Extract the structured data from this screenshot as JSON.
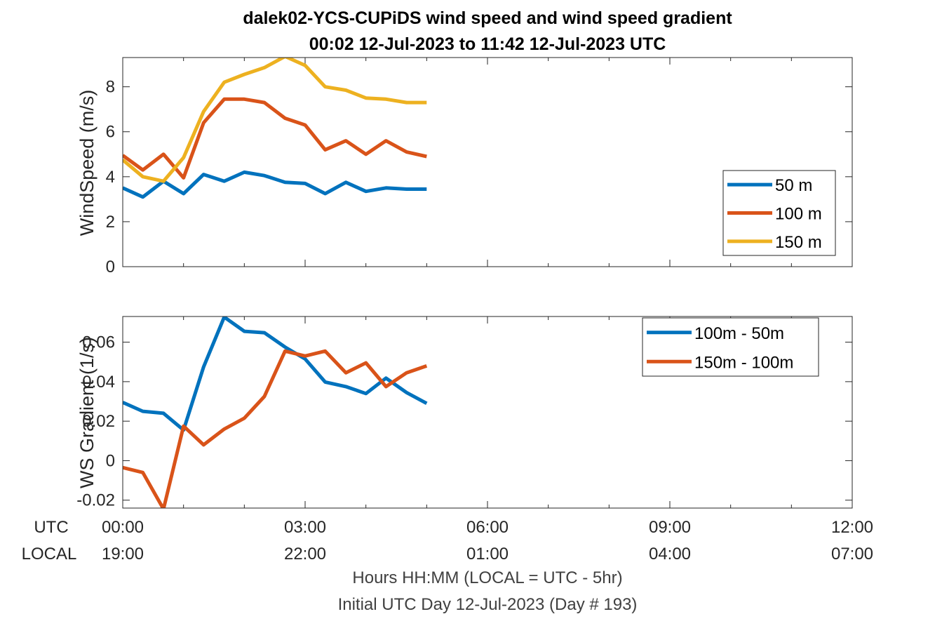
{
  "title_line1": "dalek02-YCS-CUPiDS  wind speed and wind speed gradient",
  "title_line2": "00:02 12-Jul-2023 to 11:42 12-Jul-2023  UTC",
  "utc_row_label": "UTC",
  "local_row_label": "LOCAL",
  "xlabel_line1": "Hours HH:MM  (LOCAL = UTC - 5hr)",
  "xlabel_line2": "Initial UTC Day 12-Jul-2023 (Day # 193)",
  "x_ticks": [
    {
      "hours": 0,
      "utc": "00:00",
      "local": "19:00"
    },
    {
      "hours": 3,
      "utc": "03:00",
      "local": "22:00"
    },
    {
      "hours": 6,
      "utc": "06:00",
      "local": "01:00"
    },
    {
      "hours": 9,
      "utc": "09:00",
      "local": "04:00"
    },
    {
      "hours": 12,
      "utc": "12:00",
      "local": "07:00"
    }
  ],
  "colors": {
    "blue": "#0072BD",
    "orange": "#D95319",
    "yellow": "#EDB120"
  },
  "chart_data": [
    {
      "type": "line",
      "ylabel": "WindSpeed (m/s)",
      "xlim": [
        0,
        12
      ],
      "ylim": [
        0,
        9.3
      ],
      "yticks": [
        0,
        2,
        4,
        6,
        8
      ],
      "ytick_labels": [
        "0",
        "2",
        "4",
        "6",
        "8"
      ],
      "legend_position": "right",
      "x": [
        0.0,
        0.33,
        0.67,
        1.0,
        1.33,
        1.67,
        2.0,
        2.33,
        2.67,
        3.0,
        3.33,
        3.67,
        4.0,
        4.33,
        4.67,
        5.0
      ],
      "series": [
        {
          "name": "50 m",
          "color": "#0072BD",
          "values": [
            3.5,
            3.1,
            3.8,
            3.25,
            4.1,
            3.8,
            4.2,
            4.05,
            3.75,
            3.7,
            3.25,
            3.75,
            3.35,
            3.5,
            3.45,
            3.45
          ]
        },
        {
          "name": "100 m",
          "color": "#D95319",
          "values": [
            4.95,
            4.3,
            5.0,
            3.95,
            6.4,
            7.45,
            7.45,
            7.3,
            6.6,
            6.3,
            5.2,
            5.6,
            5.0,
            5.6,
            5.1,
            4.9
          ]
        },
        {
          "name": "150 m",
          "color": "#EDB120",
          "values": [
            4.75,
            4.0,
            3.8,
            4.85,
            6.9,
            8.2,
            8.55,
            8.85,
            9.35,
            8.95,
            8.0,
            7.85,
            7.5,
            7.45,
            7.3,
            7.3
          ]
        }
      ]
    },
    {
      "type": "line",
      "ylabel": "WS Gradient (1/s)",
      "xlim": [
        0,
        12
      ],
      "ylim": [
        -0.024,
        0.073
      ],
      "yticks": [
        -0.02,
        0,
        0.02,
        0.04,
        0.06
      ],
      "ytick_labels": [
        "-0.02",
        "0",
        "0.02",
        "0.04",
        "0.06"
      ],
      "legend_position": "top-right",
      "x": [
        0.0,
        0.33,
        0.67,
        1.0,
        1.33,
        1.67,
        2.0,
        2.33,
        2.67,
        3.0,
        3.33,
        3.67,
        4.0,
        4.33,
        4.67,
        5.0
      ],
      "series": [
        {
          "name": "100m - 50m",
          "color": "#0072BD",
          "values": [
            0.0295,
            0.025,
            0.024,
            0.0155,
            0.0475,
            0.0727,
            0.0655,
            0.0648,
            0.0575,
            0.0515,
            0.0398,
            0.0375,
            0.034,
            0.0418,
            0.0345,
            0.029
          ]
        },
        {
          "name": "150m - 100m",
          "color": "#D95319",
          "values": [
            -0.0035,
            -0.006,
            -0.0245,
            0.0175,
            0.008,
            0.016,
            0.0215,
            0.0325,
            0.0555,
            0.053,
            0.0555,
            0.0445,
            0.0495,
            0.0375,
            0.0445,
            0.048
          ]
        }
      ]
    }
  ]
}
